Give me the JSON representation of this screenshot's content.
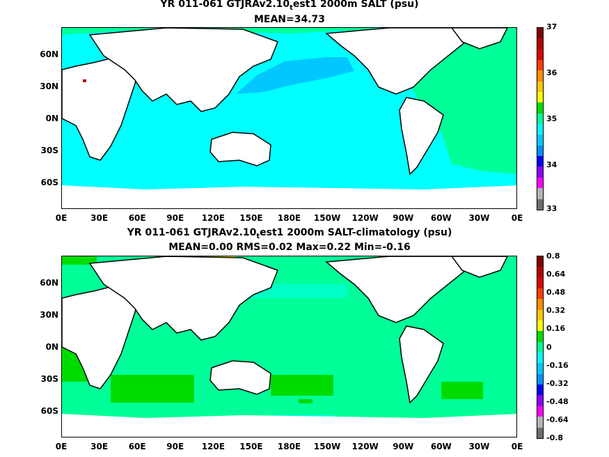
{
  "panel1": {
    "title_main": "YR 011-061 GTJRAv2.10",
    "title_sub": "t",
    "title_rest": "est1 2000m SALT (psu)",
    "stats": "MEAN=34.73",
    "colorbar_labels": [
      "37",
      "36",
      "35",
      "34",
      "33"
    ],
    "colorbar_colors": [
      "#800000",
      "#b40000",
      "#dc0000",
      "#ff3c00",
      "#ff8c00",
      "#ffc800",
      "#ffff00",
      "#00dc00",
      "#00ff99",
      "#00ffff",
      "#00c8ff",
      "#0090ff",
      "#0000ff",
      "#8c00ff",
      "#ff00ff",
      "#b4b4b4",
      "#6e6e6e"
    ],
    "ocean_color": "#00ffff",
    "atlantic_color": "#00ff99",
    "northpacific_color": "#00c8ff"
  },
  "panel2": {
    "title_main": "YR 011-061 GTJRAv2.10",
    "title_sub": "t",
    "title_rest": "est1 2000m SALT-climatology (psu)",
    "stats": "MEAN=0.00   RMS=0.02   Max=0.22   Min=-0.16",
    "colorbar_labels": [
      "0.8",
      "0.64",
      "0.48",
      "0.32",
      "0.16",
      "0",
      "-0.16",
      "-0.32",
      "-0.48",
      "-0.64",
      "-0.8"
    ],
    "colorbar_colors": [
      "#800000",
      "#b40000",
      "#dc0000",
      "#ff3c00",
      "#ff8c00",
      "#ffc800",
      "#ffff00",
      "#00dc00",
      "#00ff99",
      "#00ffff",
      "#00c8ff",
      "#0090ff",
      "#0000ff",
      "#8c00ff",
      "#ff00ff",
      "#b4b4b4",
      "#6e6e6e"
    ],
    "ocean_color": "#00ff99",
    "patch_color": "#00dc00"
  },
  "lat_labels": [
    "60N",
    "30N",
    "0N",
    "30S",
    "60S"
  ],
  "lon_labels": [
    "0E",
    "30E",
    "60E",
    "90E",
    "120E",
    "150E",
    "180E",
    "150W",
    "120W",
    "90W",
    "60W",
    "30W",
    "0E"
  ]
}
